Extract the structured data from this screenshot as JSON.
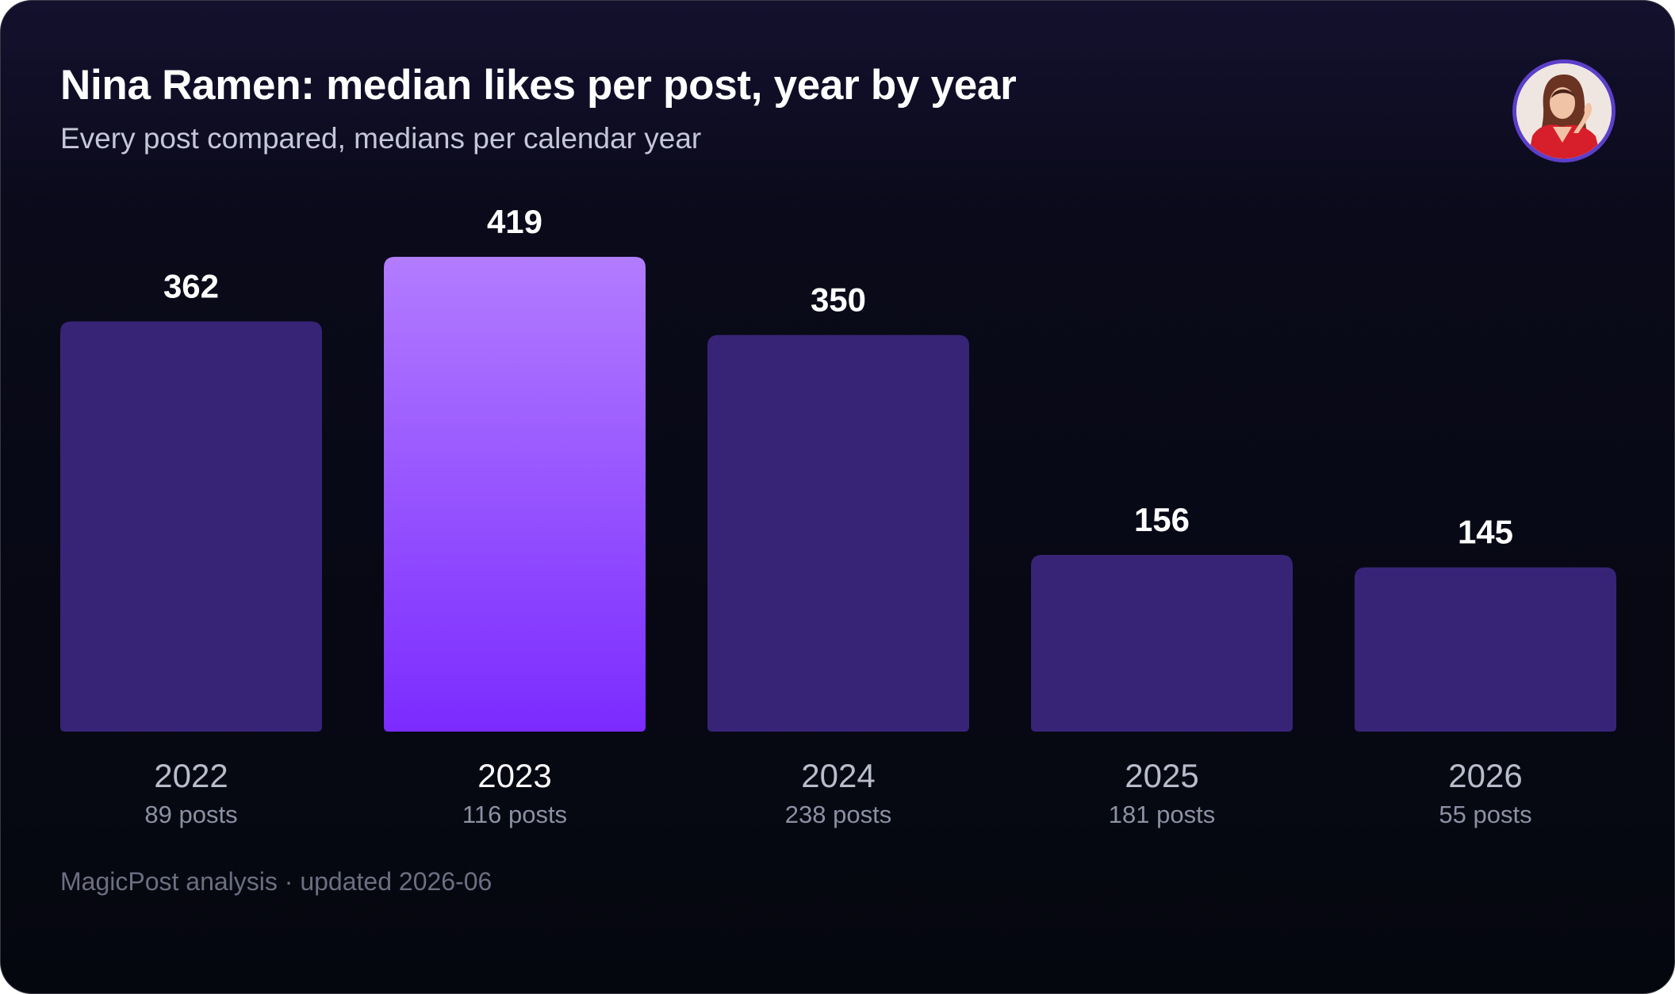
{
  "header": {
    "title": "Nina Ramen: median likes per post, year by year",
    "subtitle": "Every post compared, medians per calendar year"
  },
  "footer": {
    "text": "MagicPost analysis · updated 2026-06"
  },
  "colors": {
    "bar": "#372476",
    "highlight_top": "#b27cff",
    "highlight_bottom": "#7b2bff",
    "value_label": "#ffffff",
    "category_label": "#b9bccb",
    "highlight_category_label": "#ffffff",
    "posts_label": "#8d90a3"
  },
  "avatar": {
    "icon": "profile-photo-icon"
  },
  "chart_data": {
    "type": "bar",
    "title": "Nina Ramen: median likes per post, year by year",
    "subtitle": "Every post compared, medians per calendar year",
    "categories": [
      "2022",
      "2023",
      "2024",
      "2025",
      "2026"
    ],
    "values": [
      362,
      419,
      350,
      156,
      145
    ],
    "post_counts": [
      "89 posts",
      "116 posts",
      "238 posts",
      "181 posts",
      "55 posts"
    ],
    "highlight": "2023",
    "ylim": [
      0,
      419
    ],
    "grid": false,
    "legend": "none"
  }
}
